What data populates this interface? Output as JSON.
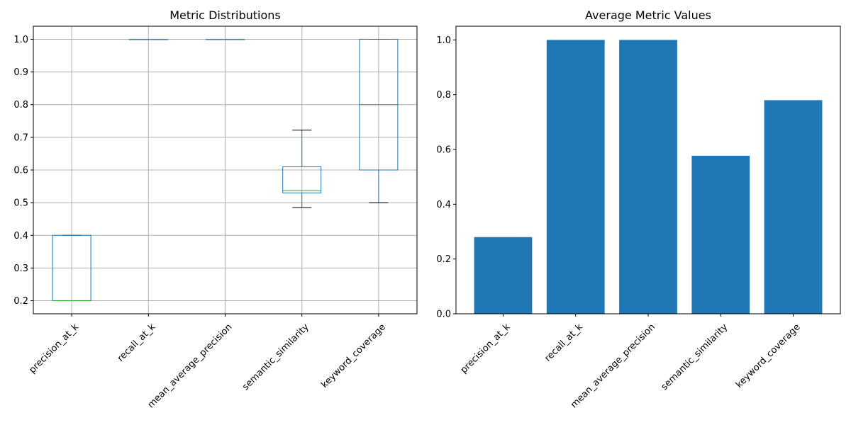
{
  "chart_data": [
    {
      "type": "box",
      "title": "Metric Distributions",
      "categories": [
        "precision_at_k",
        "recall_at_k",
        "mean_average_precision",
        "semantic_similarity",
        "keyword_coverage"
      ],
      "boxes": [
        {
          "whisker_low": 0.2,
          "q1": 0.2,
          "median": 0.2,
          "q3": 0.4,
          "whisker_high": 0.4
        },
        {
          "whisker_low": 1.0,
          "q1": 1.0,
          "median": 1.0,
          "q3": 1.0,
          "whisker_high": 1.0
        },
        {
          "whisker_low": 1.0,
          "q1": 1.0,
          "median": 1.0,
          "q3": 1.0,
          "whisker_high": 1.0
        },
        {
          "whisker_low": 0.485,
          "q1": 0.53,
          "median": 0.537,
          "q3": 0.61,
          "whisker_high": 0.722
        },
        {
          "whisker_low": 0.5,
          "q1": 0.6,
          "median": 0.8,
          "q3": 1.0,
          "whisker_high": 1.0
        }
      ],
      "yticks": [
        "0.2",
        "0.3",
        "0.4",
        "0.5",
        "0.6",
        "0.7",
        "0.8",
        "0.9",
        "1.0"
      ],
      "ylim": [
        0.16,
        1.04
      ],
      "grid": true,
      "colors": {
        "box": "#1f77b4",
        "median": "#2ca02c",
        "whisker_cap": "#000000",
        "grid": "#b0b0b0"
      }
    },
    {
      "type": "bar",
      "title": "Average Metric Values",
      "categories": [
        "precision_at_k",
        "recall_at_k",
        "mean_average_precision",
        "semantic_similarity",
        "keyword_coverage"
      ],
      "values": [
        0.28,
        1.0,
        1.0,
        0.577,
        0.78
      ],
      "yticks": [
        "0.0",
        "0.2",
        "0.4",
        "0.6",
        "0.8",
        "1.0"
      ],
      "ylim": [
        0,
        1.05
      ],
      "grid": false,
      "colors": {
        "bar": "#1f77b4"
      }
    }
  ]
}
